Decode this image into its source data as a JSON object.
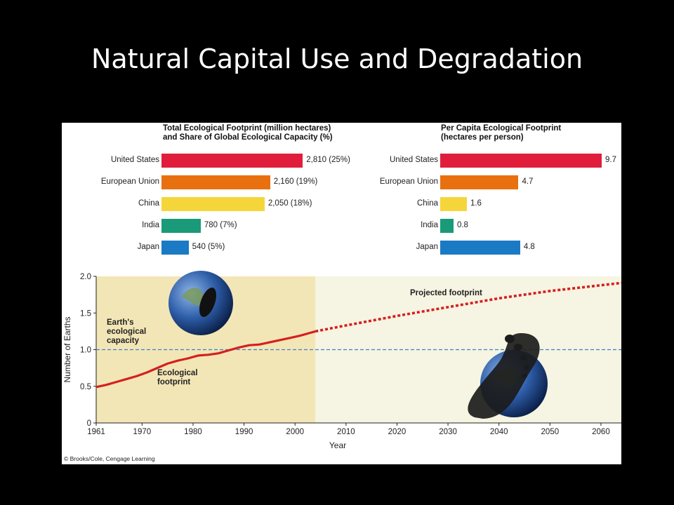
{
  "slide": {
    "title": "Natural Capital Use and Degradation"
  },
  "chart_data": [
    {
      "type": "bar",
      "title": "Total Ecological Footprint (million hectares)\nand Share of Global Ecological Capacity (%)",
      "categories": [
        "United States",
        "European Union",
        "China",
        "India",
        "Japan"
      ],
      "values": [
        2810,
        2160,
        2050,
        780,
        540
      ],
      "value_labels": [
        "2,810 (25%)",
        "2,160 (19%)",
        "2,050 (18%)",
        "780 (7%)",
        "540 (5%)"
      ],
      "colors": [
        "#e01e3c",
        "#e8700f",
        "#f5d63a",
        "#1a9a78",
        "#1b7ac4"
      ],
      "xlim": [
        0,
        3560
      ]
    },
    {
      "type": "bar",
      "title": "Per Capita Ecological Footprint\n(hectares per person)",
      "categories": [
        "United States",
        "European Union",
        "China",
        "India",
        "Japan"
      ],
      "values": [
        9.7,
        4.7,
        1.6,
        0.8,
        4.8
      ],
      "value_labels": [
        "9.7",
        "4.7",
        "1.6",
        "0.8",
        "4.8"
      ],
      "colors": [
        "#e01e3c",
        "#e8700f",
        "#f5d63a",
        "#1a9a78",
        "#1b7ac4"
      ],
      "xlim": [
        0,
        9.7
      ]
    },
    {
      "type": "line",
      "xlabel": "Year",
      "ylabel": "Number of Earths",
      "xlim": [
        1961,
        2064
      ],
      "ylim": [
        0,
        2.0
      ],
      "xticks": [
        "1961",
        "1970",
        "1980",
        "1990",
        "2000",
        "2010",
        "2020",
        "2030",
        "2040",
        "2050",
        "2060"
      ],
      "yticks": [
        "0",
        "0.5",
        "1.0",
        "1.5",
        "2.0"
      ],
      "capacity": 1.0,
      "shaded_until": 2004,
      "series": [
        {
          "name": "Ecological footprint",
          "color": "#d42020",
          "x": [
            1961,
            1963,
            1965,
            1967,
            1969,
            1971,
            1973,
            1975,
            1977,
            1979,
            1981,
            1983,
            1985,
            1987,
            1989,
            1991,
            1993,
            1995,
            1997,
            1999,
            2001,
            2003,
            2004
          ],
          "y": [
            0.49,
            0.52,
            0.56,
            0.6,
            0.64,
            0.69,
            0.75,
            0.81,
            0.85,
            0.88,
            0.92,
            0.93,
            0.95,
            0.99,
            1.03,
            1.06,
            1.07,
            1.1,
            1.13,
            1.16,
            1.19,
            1.23,
            1.25
          ]
        },
        {
          "name": "Projected footprint",
          "color": "#d42020",
          "dashed": true,
          "x": [
            2004,
            2010,
            2020,
            2030,
            2040,
            2050,
            2064
          ],
          "y": [
            1.25,
            1.33,
            1.46,
            1.58,
            1.7,
            1.8,
            1.91
          ]
        }
      ],
      "annotations": [
        "Earth's\necological\ncapacity",
        "Ecological\nfootprint",
        "Projected footprint"
      ]
    }
  ],
  "credit": "© Brooks/Cole, Cengage Learning"
}
